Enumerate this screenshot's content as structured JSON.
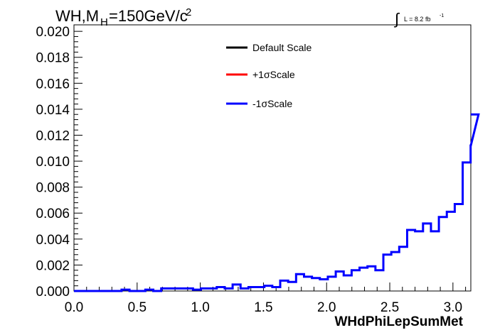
{
  "title": {
    "main": "WH,M",
    "sub": "H",
    "rest": "=150GeV/c",
    "sup": "2"
  },
  "lumi": {
    "integral": "∫",
    "text": "L = 8.2 fb",
    "sup": "-1"
  },
  "legend": [
    {
      "label": "Default Scale",
      "color": "#000000"
    },
    {
      "label": "+1σScale",
      "color": "#ff0000"
    },
    {
      "label": "-1σScale",
      "color": "#0000ff"
    }
  ],
  "chart_data": {
    "type": "line",
    "xlabel": "WHdPhiLepSumMet",
    "ylabel": "",
    "xlim": [
      0,
      3.1416
    ],
    "ylim": [
      0,
      0.0205
    ],
    "x_ticks": [
      "0.0",
      "0.5",
      "1.0",
      "1.5",
      "2.0",
      "2.5",
      "3.0"
    ],
    "y_ticks": [
      "0.000",
      "0.002",
      "0.004",
      "0.006",
      "0.008",
      "0.010",
      "0.012",
      "0.014",
      "0.016",
      "0.018",
      "0.020"
    ],
    "bin_width": 0.0628,
    "series": [
      {
        "name": "-1σScale",
        "color": "#0000ff",
        "values": [
          0.0,
          0.0,
          0.0,
          0.0,
          0.0,
          0.0,
          0.0001,
          0.0,
          0.0,
          0.0001,
          0.0,
          0.0002,
          0.0002,
          0.0002,
          0.0002,
          0.0001,
          0.0002,
          0.0002,
          0.0003,
          0.0002,
          0.0005,
          0.0002,
          0.0003,
          0.0003,
          0.0004,
          0.0003,
          0.0008,
          0.0007,
          0.0013,
          0.0011,
          0.001,
          0.0009,
          0.0011,
          0.0015,
          0.0012,
          0.0016,
          0.0018,
          0.0019,
          0.0016,
          0.0028,
          0.003,
          0.0034,
          0.0047,
          0.0046,
          0.0052,
          0.0046,
          0.0057,
          0.0061,
          0.0067,
          0.0099,
          0.0112,
          0.0136
        ]
      }
    ]
  }
}
